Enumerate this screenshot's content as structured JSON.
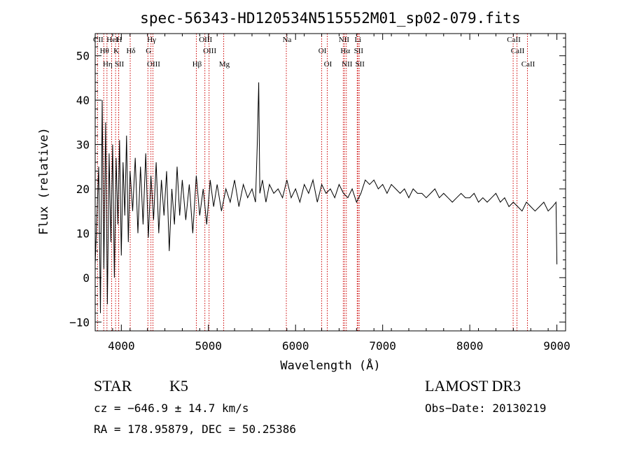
{
  "chart_data": {
    "type": "line",
    "title": "spec-56343-HD120534N515552M01_sp02-079.fits",
    "xlabel": "Wavelength (Å)",
    "ylabel": "Flux (relative)",
    "xlim": [
      3700,
      9100
    ],
    "ylim": [
      -12,
      55
    ],
    "xticks": [
      4000,
      5000,
      6000,
      7000,
      8000,
      9000
    ],
    "yticks": [
      -10,
      0,
      10,
      20,
      30,
      40,
      50
    ],
    "grid": false,
    "series": [
      {
        "name": "spectrum",
        "x": [
          3700,
          3740,
          3760,
          3780,
          3800,
          3820,
          3840,
          3860,
          3880,
          3900,
          3920,
          3940,
          3960,
          3980,
          4000,
          4020,
          4040,
          4060,
          4080,
          4100,
          4130,
          4160,
          4190,
          4220,
          4250,
          4280,
          4310,
          4340,
          4370,
          4400,
          4430,
          4460,
          4490,
          4520,
          4550,
          4580,
          4610,
          4640,
          4670,
          4700,
          4740,
          4780,
          4820,
          4860,
          4900,
          4940,
          4980,
          5020,
          5060,
          5100,
          5150,
          5200,
          5250,
          5300,
          5350,
          5400,
          5450,
          5500,
          5540,
          5560,
          5577,
          5590,
          5620,
          5660,
          5700,
          5750,
          5800,
          5850,
          5900,
          5950,
          6000,
          6050,
          6100,
          6150,
          6200,
          6250,
          6300,
          6350,
          6400,
          6450,
          6500,
          6550,
          6600,
          6650,
          6700,
          6750,
          6800,
          6850,
          6900,
          6950,
          7000,
          7050,
          7100,
          7150,
          7200,
          7250,
          7300,
          7350,
          7400,
          7450,
          7500,
          7550,
          7600,
          7650,
          7700,
          7750,
          7800,
          7850,
          7900,
          7950,
          8000,
          8050,
          8100,
          8150,
          8200,
          8250,
          8300,
          8350,
          8400,
          8450,
          8500,
          8550,
          8600,
          8650,
          8700,
          8750,
          8800,
          8850,
          8900,
          8950,
          8990,
          9000
        ],
        "y": [
          3,
          25,
          -8,
          40,
          2,
          35,
          -6,
          28,
          8,
          30,
          0,
          27,
          12,
          31,
          5,
          26,
          14,
          32,
          8,
          24,
          15,
          27,
          10,
          25,
          12,
          28,
          9,
          23,
          13,
          26,
          10,
          22,
          14,
          24,
          6,
          20,
          12,
          25,
          14,
          22,
          13,
          21,
          10,
          23,
          14,
          20,
          12,
          22,
          16,
          21,
          15,
          20,
          17,
          22,
          16,
          21,
          18,
          20,
          17,
          30,
          44,
          19,
          22,
          17,
          21,
          19,
          20,
          18,
          22,
          18,
          20,
          17,
          21,
          19,
          22,
          17,
          21,
          19,
          20,
          18,
          21,
          19,
          18,
          20,
          17,
          19,
          22,
          21,
          22,
          20,
          21,
          19,
          21,
          20,
          19,
          20,
          18,
          20,
          19,
          19,
          18,
          19,
          20,
          18,
          19,
          18,
          17,
          18,
          19,
          18,
          18,
          19,
          17,
          18,
          17,
          18,
          19,
          17,
          18,
          16,
          17,
          16,
          15,
          17,
          16,
          15,
          16,
          17,
          15,
          16,
          17,
          3
        ]
      }
    ],
    "lines": [
      {
        "label": "CII",
        "x": 3727
      },
      {
        "label": "Hθ",
        "x": 3798
      },
      {
        "label": "Hη",
        "x": 3835
      },
      {
        "label": "HeI",
        "x": 3889
      },
      {
        "label": "K",
        "x": 3934
      },
      {
        "label": "SII",
        "x": 3970
      },
      {
        "label": "H",
        "x": 3969
      },
      {
        "label": "Hδ",
        "x": 4102
      },
      {
        "label": "OIII",
        "x": 4363
      },
      {
        "label": "Hγ",
        "x": 4340
      },
      {
        "label": "G",
        "x": 4305
      },
      {
        "label": "Hβ",
        "x": 4861
      },
      {
        "label": "OIII",
        "x": 4959
      },
      {
        "label": "OIII",
        "x": 5007
      },
      {
        "label": "Mg",
        "x": 5175
      },
      {
        "label": "Na",
        "x": 5894
      },
      {
        "label": "OI",
        "x": 6300
      },
      {
        "label": "OI",
        "x": 6364
      },
      {
        "label": "NII",
        "x": 6548
      },
      {
        "label": "Hα",
        "x": 6563
      },
      {
        "label": "NII",
        "x": 6583
      },
      {
        "label": "Li",
        "x": 6708
      },
      {
        "label": "SII",
        "x": 6716
      },
      {
        "label": "SII",
        "x": 6731
      },
      {
        "label": "CaII",
        "x": 8498
      },
      {
        "label": "CaII",
        "x": 8542
      },
      {
        "label": "CaII",
        "x": 8662
      }
    ]
  },
  "info": {
    "class": "STAR",
    "subclass": "K5",
    "survey": "LAMOST DR3",
    "cz": "cz = −646.9 ± 14.7 km/s",
    "obs_date": "Obs−Date: 20130219",
    "coords": "RA = 178.95879, DEC =  50.25386"
  },
  "colors": {
    "line_marker": "#cc0000",
    "spectrum": "#000000"
  }
}
